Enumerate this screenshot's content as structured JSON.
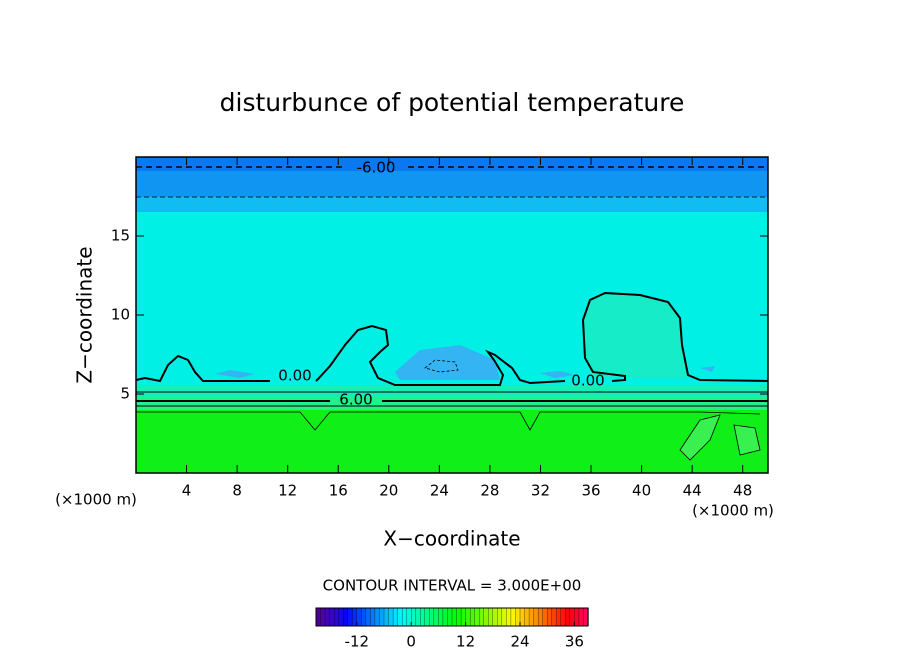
{
  "chart_data": {
    "type": "contour",
    "title": "disturbunce of potential temperature",
    "x_label": "X−coordinate",
    "y_label": "Z−coordinate",
    "x_unit_label": "(×1000 m)",
    "y_unit_label": "(×1000 m)",
    "xlim": [
      0,
      50
    ],
    "ylim": [
      0,
      20
    ],
    "xticks": [
      4,
      8,
      12,
      16,
      20,
      24,
      28,
      32,
      36,
      40,
      44,
      48
    ],
    "yticks": [
      5,
      10,
      15
    ],
    "contour_labels": [
      "-6.00",
      "0.00",
      "0.00",
      "6.00"
    ],
    "contour_interval": "CONTOUR INTERVAL = 3.000E+00",
    "colorbar": {
      "lim": [
        -21,
        39
      ],
      "ticks": [
        -12,
        0,
        12,
        24,
        36
      ]
    }
  }
}
